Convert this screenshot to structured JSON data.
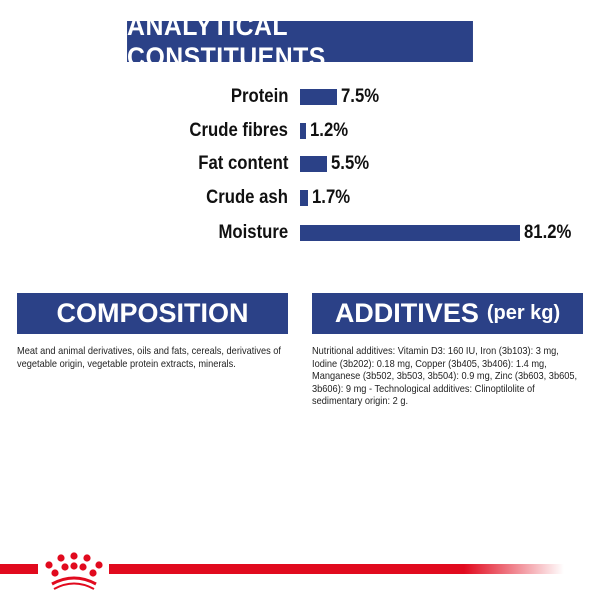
{
  "title": "ANALYTICAL CONSTITUENTS",
  "colors": {
    "brand_blue": "#2b4187",
    "brand_red": "#e10a1e"
  },
  "constituents": [
    {
      "label": "Protein",
      "value": 7.5,
      "display": "7.5%"
    },
    {
      "label": "Crude fibres",
      "value": 1.2,
      "display": "1.2%"
    },
    {
      "label": "Fat content",
      "value": 5.5,
      "display": "5.5%"
    },
    {
      "label": "Crude ash",
      "value": 1.7,
      "display": "1.7%"
    },
    {
      "label": "Moisture",
      "value": 81.2,
      "display": "81.2%"
    }
  ],
  "composition": {
    "heading": "COMPOSITION",
    "text": "Meat and animal derivatives, oils and fats, cereals, derivatives of vegetable origin, vegetable protein extracts, minerals."
  },
  "additives": {
    "heading": "ADDITIVES",
    "heading_suffix": "(per kg)",
    "text": "Nutritional additives: Vitamin D3: 160 IU, Iron (3b103): 3 mg, Iodine (3b202): 0.18 mg, Copper (3b405, 3b406): 1.4 mg, Manganese (3b502, 3b503, 3b504): 0.9 mg, Zinc (3b603, 3b605, 3b606): 9 mg - Technological additives: Clinoptilolite of sedimentary origin: 2 g."
  },
  "footer": {
    "logo": "crown-logo"
  }
}
